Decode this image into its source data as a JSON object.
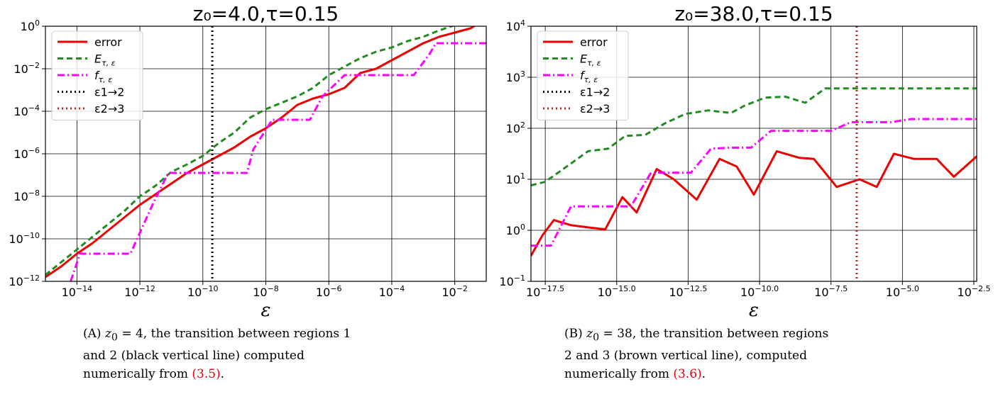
{
  "chart_data": [
    {
      "type": "line",
      "title": "z₀=4.0,τ=0.15",
      "xlabel": "ε",
      "ylabel": "",
      "x_scale": "log10",
      "y_scale": "log10",
      "xlim_exp": [
        -15,
        -1
      ],
      "ylim_exp": [
        -12,
        0
      ],
      "grid": true,
      "legend_position": "top-left",
      "x_tick_labels": [
        {
          "exp": -14,
          "label": "10",
          "sup": "−14"
        },
        {
          "exp": -12,
          "label": "10",
          "sup": "−12"
        },
        {
          "exp": -10,
          "label": "10",
          "sup": "−10"
        },
        {
          "exp": -8,
          "label": "10",
          "sup": "−8"
        },
        {
          "exp": -6,
          "label": "10",
          "sup": "−6"
        },
        {
          "exp": -4,
          "label": "10",
          "sup": "−4"
        },
        {
          "exp": -2,
          "label": "10",
          "sup": "−2"
        }
      ],
      "y_tick_labels": [
        {
          "exp": 0,
          "label": "10",
          "sup": "0"
        },
        {
          "exp": -2,
          "label": "10",
          "sup": "−2"
        },
        {
          "exp": -4,
          "label": "10",
          "sup": "−4"
        },
        {
          "exp": -6,
          "label": "10",
          "sup": "−6"
        },
        {
          "exp": -8,
          "label": "10",
          "sup": "−8"
        },
        {
          "exp": -10,
          "label": "10",
          "sup": "−10"
        },
        {
          "exp": -12,
          "label": "10",
          "sup": "−12"
        }
      ],
      "series": [
        {
          "name": "error",
          "color": "#ee0000",
          "dash": "solid",
          "x_exp": [
            -15,
            -14.5,
            -14,
            -13.5,
            -13,
            -12.5,
            -12,
            -11.5,
            -11,
            -10.5,
            -10,
            -9.5,
            -9,
            -8.5,
            -8,
            -7.5,
            -7,
            -6.5,
            -6,
            -5.5,
            -5,
            -4.5,
            -4,
            -3.5,
            -3,
            -2.5,
            -2,
            -1.5,
            -1
          ],
          "y_exp": [
            -11.8,
            -11.3,
            -10.7,
            -10.2,
            -9.6,
            -9.0,
            -8.4,
            -7.9,
            -7.4,
            -6.9,
            -6.5,
            -6.1,
            -5.7,
            -5.2,
            -4.8,
            -4.3,
            -3.7,
            -3.4,
            -3.2,
            -2.9,
            -2.2,
            -2.0,
            -1.6,
            -1.2,
            -0.8,
            -0.5,
            -0.3,
            -0.1,
            0.35
          ]
        },
        {
          "name": "E",
          "sub": "τ, ε",
          "color": "#228b22",
          "dash": "8,5",
          "x_exp": [
            -15,
            -14.5,
            -14,
            -13.5,
            -13,
            -12.5,
            -12,
            -11.5,
            -11,
            -10.5,
            -10,
            -9.5,
            -9,
            -8.5,
            -8,
            -7.5,
            -7,
            -6.5,
            -6,
            -5.5,
            -5,
            -4.5,
            -4,
            -3.5,
            -3,
            -2.5,
            -2,
            -1.5,
            -1
          ],
          "y_exp": [
            -11.7,
            -11.1,
            -10.5,
            -9.9,
            -9.3,
            -8.7,
            -8.0,
            -7.5,
            -6.85,
            -6.5,
            -6.1,
            -5.5,
            -5.0,
            -4.3,
            -3.9,
            -3.6,
            -3.3,
            -2.9,
            -2.3,
            -1.9,
            -1.5,
            -1.2,
            -1.0,
            -0.7,
            -0.5,
            -0.2,
            0.05,
            0.05,
            0.05
          ]
        },
        {
          "name": "f",
          "sub": "τ, ε",
          "color": "#ff00ff",
          "dash": "10,4,2,4",
          "x_exp": [
            -14.2,
            -13.9,
            -13.4,
            -12.5,
            -12.3,
            -11.6,
            -11.1,
            -10.5,
            -9.3,
            -8.6,
            -8.4,
            -7.8,
            -7.2,
            -6.6,
            -6.2,
            -5.5,
            -4.8,
            -4.3,
            -3.3,
            -2.8,
            -2.6,
            -1.5,
            -1
          ],
          "y_exp": [
            -12.0,
            -10.7,
            -10.7,
            -10.7,
            -10.7,
            -8.4,
            -6.9,
            -6.9,
            -6.9,
            -6.9,
            -5.8,
            -4.4,
            -4.4,
            -4.4,
            -3.3,
            -2.3,
            -2.3,
            -2.3,
            -2.3,
            -1.3,
            -0.8,
            -0.8,
            -0.8
          ]
        },
        {
          "name": "ε1→2",
          "color": "#000000",
          "dash": "2,4",
          "vertical_at_exp": -9.7
        }
      ],
      "legend": [
        {
          "label": "error",
          "color": "#ee0000",
          "dash": "solid"
        },
        {
          "label": "E",
          "sub": "τ, ε",
          "color": "#228b22",
          "dash": "8,5"
        },
        {
          "label": "f",
          "sub": "τ, ε",
          "color": "#ff00ff",
          "dash": "10,4,2,4"
        },
        {
          "label": "ε1→2",
          "color": "#000000",
          "dash": "2,4"
        },
        {
          "label": "ε2→3",
          "color": "#a52a2a",
          "dash": "2,4"
        }
      ]
    },
    {
      "type": "line",
      "title": "z₀=38.0,τ=0.15",
      "xlabel": "ε",
      "ylabel": "",
      "x_scale": "log10",
      "y_scale": "log10",
      "xlim_exp": [
        -18,
        -2.4
      ],
      "ylim_exp": [
        -1,
        4
      ],
      "grid": true,
      "legend_position": "top-left",
      "x_tick_labels": [
        {
          "exp": -17.5,
          "label": "10",
          "sup": "−17.5"
        },
        {
          "exp": -15.0,
          "label": "10",
          "sup": "−15.0"
        },
        {
          "exp": -12.5,
          "label": "10",
          "sup": "−12.5"
        },
        {
          "exp": -10.0,
          "label": "10",
          "sup": "−10.0"
        },
        {
          "exp": -7.5,
          "label": "10",
          "sup": "−7.5"
        },
        {
          "exp": -5.0,
          "label": "10",
          "sup": "−5.0"
        },
        {
          "exp": -2.5,
          "label": "10",
          "sup": "−2.5"
        }
      ],
      "y_tick_labels": [
        {
          "exp": 4,
          "label": "10",
          "sup": "4"
        },
        {
          "exp": 3,
          "label": "10",
          "sup": "3"
        },
        {
          "exp": 2,
          "label": "10",
          "sup": "2"
        },
        {
          "exp": 1,
          "label": "10",
          "sup": "1"
        },
        {
          "exp": 0,
          "label": "10",
          "sup": "0"
        },
        {
          "exp": -1,
          "label": "10",
          "sup": "−1"
        }
      ],
      "series": [
        {
          "name": "error",
          "color": "#ee0000",
          "dash": "solid",
          "x_exp": [
            -18,
            -17.6,
            -17.2,
            -16.6,
            -15.9,
            -15.4,
            -14.8,
            -14.3,
            -13.6,
            -13.0,
            -12.2,
            -11.4,
            -10.8,
            -10.2,
            -9.4,
            -8.6,
            -8.1,
            -7.3,
            -6.5,
            -5.9,
            -5.3,
            -4.6,
            -3.8,
            -3.2,
            -2.4
          ],
          "y_exp": [
            -0.5,
            -0.1,
            0.2,
            0.1,
            0.05,
            0.02,
            0.65,
            0.35,
            1.2,
            1.0,
            0.6,
            1.4,
            1.25,
            0.7,
            1.55,
            1.42,
            1.4,
            0.85,
            1.0,
            0.85,
            1.5,
            1.4,
            1.4,
            1.05,
            1.45
          ]
        },
        {
          "name": "E",
          "sub": "τ, ε",
          "color": "#228b22",
          "dash": "8,5",
          "x_exp": [
            -18,
            -17.5,
            -17.0,
            -16.5,
            -16.0,
            -15.3,
            -14.7,
            -14.0,
            -13.3,
            -12.6,
            -11.8,
            -11.0,
            -10.5,
            -9.8,
            -9.1,
            -8.4,
            -7.7,
            -7.0,
            -6.3,
            -5.0,
            -3.5,
            -2.4
          ],
          "y_exp": [
            0.88,
            0.95,
            1.15,
            1.35,
            1.55,
            1.6,
            1.85,
            1.87,
            2.1,
            2.28,
            2.35,
            2.3,
            2.45,
            2.6,
            2.62,
            2.5,
            2.78,
            2.78,
            2.78,
            2.78,
            2.78,
            2.78
          ]
        },
        {
          "name": "f",
          "sub": "τ, ε",
          "color": "#ff00ff",
          "dash": "10,4,2,4",
          "x_exp": [
            -18,
            -17.3,
            -16.6,
            -15.9,
            -15.2,
            -14.5,
            -13.8,
            -13.1,
            -12.4,
            -11.7,
            -11.0,
            -10.3,
            -9.6,
            -8.9,
            -8.2,
            -7.5,
            -6.8,
            -6.1,
            -5.4,
            -4.7,
            -4.0,
            -3.3,
            -2.4
          ],
          "y_exp": [
            -0.3,
            -0.3,
            0.47,
            0.47,
            0.47,
            0.47,
            1.13,
            1.13,
            1.13,
            1.6,
            1.62,
            1.62,
            1.95,
            1.95,
            1.95,
            1.95,
            2.12,
            2.12,
            2.12,
            2.18,
            2.18,
            2.18,
            2.18
          ]
        },
        {
          "name": "ε2→3",
          "color": "#a52a2a",
          "dash": "2,4",
          "vertical_at_exp": -6.6
        }
      ],
      "legend": [
        {
          "label": "error",
          "color": "#ee0000",
          "dash": "solid"
        },
        {
          "label": "E",
          "sub": "τ, ε",
          "color": "#228b22",
          "dash": "8,5"
        },
        {
          "label": "f",
          "sub": "τ, ε",
          "color": "#ff00ff",
          "dash": "10,4,2,4"
        },
        {
          "label": "ε1→2",
          "color": "#000000",
          "dash": "2,4"
        },
        {
          "label": "ε2→3",
          "color": "#a52a2a",
          "dash": "2,4"
        }
      ]
    }
  ],
  "captions": [
    {
      "tag": "(A)",
      "text_1": " z",
      "sub": "0",
      "text_2": " = 4, the transition between regions 1 and 2 (black vertical line) computed numerically from ",
      "ref": "(3.5)",
      "end": "."
    },
    {
      "tag": "(B)",
      "text_1": " z",
      "sub": "0",
      "text_2": " = 38, the transition between regions 2 and 3 (brown vertical line), computed numerically from ",
      "ref": "(3.6)",
      "end": "."
    }
  ]
}
